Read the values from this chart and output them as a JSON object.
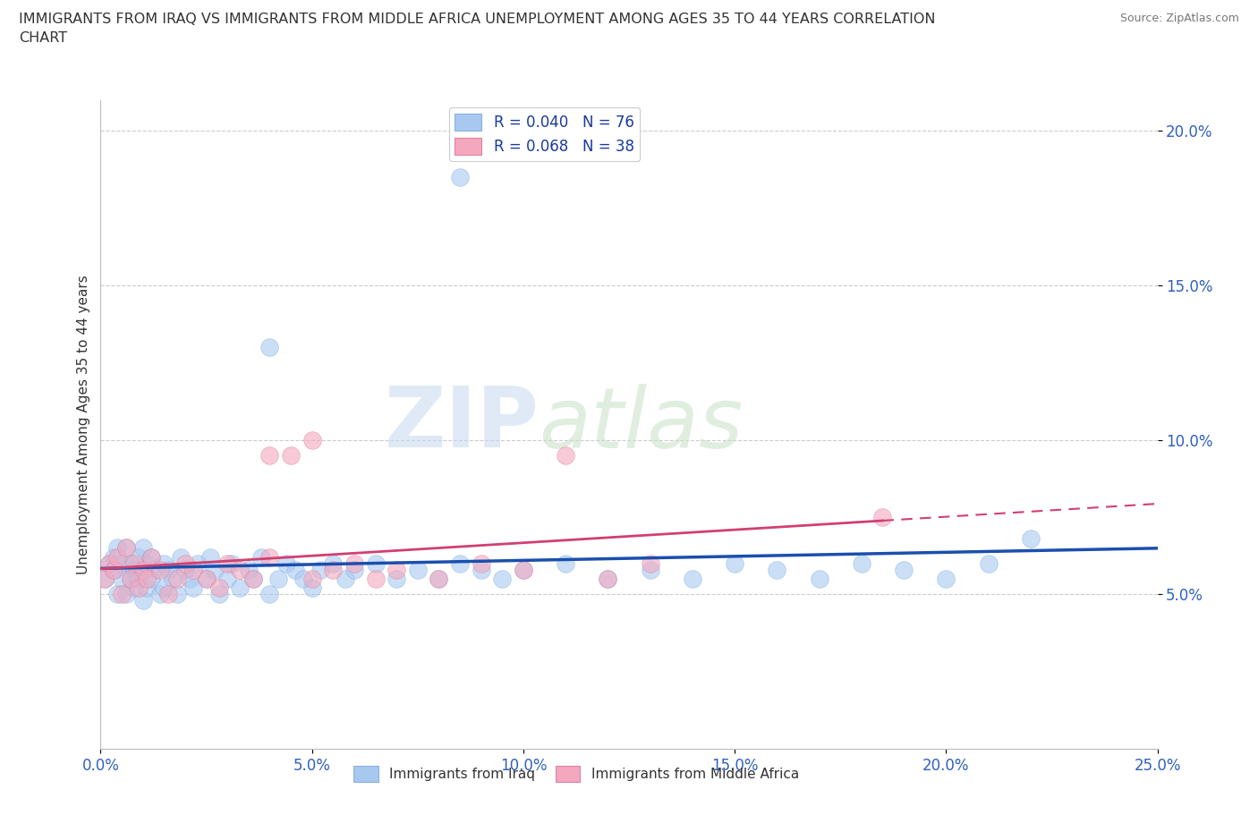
{
  "title_line1": "IMMIGRANTS FROM IRAQ VS IMMIGRANTS FROM MIDDLE AFRICA UNEMPLOYMENT AMONG AGES 35 TO 44 YEARS CORRELATION",
  "title_line2": "CHART",
  "source": "Source: ZipAtlas.com",
  "ylabel": "Unemployment Among Ages 35 to 44 years",
  "legend_iraq": "Immigrants from Iraq",
  "legend_middle_africa": "Immigrants from Middle Africa",
  "R_iraq": 0.04,
  "N_iraq": 76,
  "R_maf": 0.068,
  "N_maf": 38,
  "xlim": [
    0.0,
    0.25
  ],
  "ylim": [
    0.0,
    0.21
  ],
  "xticks": [
    0.0,
    0.05,
    0.1,
    0.15,
    0.2,
    0.25
  ],
  "yticks": [
    0.05,
    0.1,
    0.15,
    0.2
  ],
  "ytick_labels": [
    "5.0%",
    "10.0%",
    "15.0%",
    "20.0%"
  ],
  "xtick_labels": [
    "0.0%",
    "5.0%",
    "10.0%",
    "15.0%",
    "20.0%",
    "25.0%"
  ],
  "color_iraq": "#a8c8f0",
  "color_maf": "#f4a8be",
  "line_color_iraq": "#1a4fad",
  "line_color_maf": "#d04070",
  "watermark_zip": "ZIP",
  "watermark_atlas": "atlas",
  "iraq_x": [
    0.001,
    0.002,
    0.003,
    0.003,
    0.004,
    0.004,
    0.005,
    0.005,
    0.006,
    0.006,
    0.007,
    0.007,
    0.008,
    0.008,
    0.009,
    0.009,
    0.01,
    0.01,
    0.011,
    0.011,
    0.012,
    0.012,
    0.013,
    0.014,
    0.015,
    0.015,
    0.016,
    0.017,
    0.018,
    0.019,
    0.02,
    0.021,
    0.022,
    0.023,
    0.025,
    0.026,
    0.027,
    0.028,
    0.03,
    0.031,
    0.033,
    0.035,
    0.036,
    0.038,
    0.04,
    0.042,
    0.044,
    0.046,
    0.048,
    0.05,
    0.052,
    0.055,
    0.058,
    0.06,
    0.065,
    0.07,
    0.075,
    0.08,
    0.085,
    0.09,
    0.095,
    0.1,
    0.11,
    0.12,
    0.13,
    0.14,
    0.15,
    0.16,
    0.17,
    0.18,
    0.19,
    0.2,
    0.21,
    0.22,
    0.085,
    0.04
  ],
  "iraq_y": [
    0.055,
    0.06,
    0.058,
    0.062,
    0.05,
    0.065,
    0.055,
    0.06,
    0.05,
    0.065,
    0.055,
    0.06,
    0.052,
    0.058,
    0.055,
    0.062,
    0.048,
    0.065,
    0.052,
    0.06,
    0.055,
    0.062,
    0.058,
    0.05,
    0.052,
    0.06,
    0.058,
    0.055,
    0.05,
    0.062,
    0.058,
    0.055,
    0.052,
    0.06,
    0.055,
    0.062,
    0.058,
    0.05,
    0.055,
    0.06,
    0.052,
    0.058,
    0.055,
    0.062,
    0.05,
    0.055,
    0.06,
    0.058,
    0.055,
    0.052,
    0.058,
    0.06,
    0.055,
    0.058,
    0.06,
    0.055,
    0.058,
    0.055,
    0.06,
    0.058,
    0.055,
    0.058,
    0.06,
    0.055,
    0.058,
    0.055,
    0.06,
    0.058,
    0.055,
    0.06,
    0.058,
    0.055,
    0.06,
    0.068,
    0.185,
    0.13
  ],
  "maf_x": [
    0.001,
    0.002,
    0.003,
    0.004,
    0.005,
    0.006,
    0.007,
    0.008,
    0.009,
    0.01,
    0.011,
    0.012,
    0.014,
    0.016,
    0.018,
    0.02,
    0.022,
    0.025,
    0.028,
    0.03,
    0.033,
    0.036,
    0.04,
    0.045,
    0.05,
    0.055,
    0.06,
    0.065,
    0.07,
    0.08,
    0.09,
    0.1,
    0.11,
    0.12,
    0.13,
    0.185,
    0.05,
    0.04
  ],
  "maf_y": [
    0.055,
    0.06,
    0.058,
    0.062,
    0.05,
    0.065,
    0.055,
    0.06,
    0.052,
    0.058,
    0.055,
    0.062,
    0.058,
    0.05,
    0.055,
    0.06,
    0.058,
    0.055,
    0.052,
    0.06,
    0.058,
    0.055,
    0.062,
    0.095,
    0.055,
    0.058,
    0.06,
    0.055,
    0.058,
    0.055,
    0.06,
    0.058,
    0.095,
    0.055,
    0.06,
    0.075,
    0.1,
    0.095
  ]
}
